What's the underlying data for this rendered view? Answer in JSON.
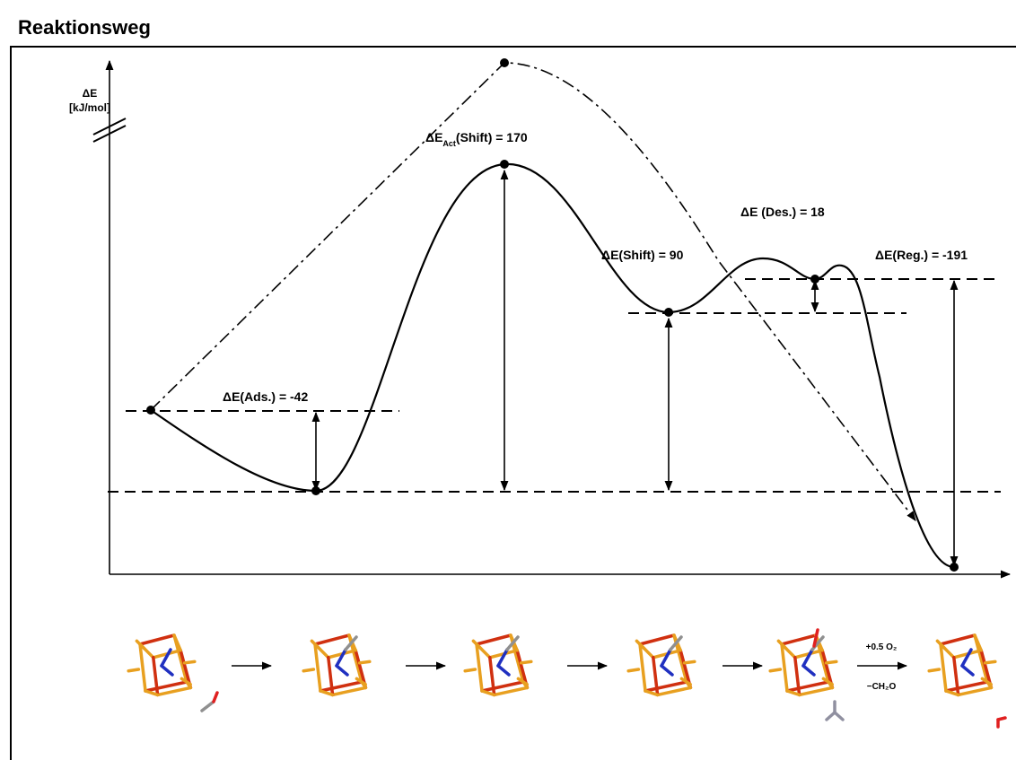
{
  "header": {
    "title": "Reaktionsweg"
  },
  "axis": {
    "label_line1": "ΔE",
    "label_line2": "[kJ/mol]"
  },
  "annotations": {
    "adsorption": "ΔE(Ads.) = -42",
    "activation": {
      "prefix": "ΔE",
      "sub": "Act",
      "suffix": "(Shift) = 170"
    },
    "shift": "ΔE(Shift) = 90",
    "desorption": "ΔE (Des.) = 18",
    "regeneration": "ΔE(Reg.) = -191"
  },
  "reaction_arrow": {
    "above": "+0.5 O₂",
    "below": "−CH₂O"
  }
}
